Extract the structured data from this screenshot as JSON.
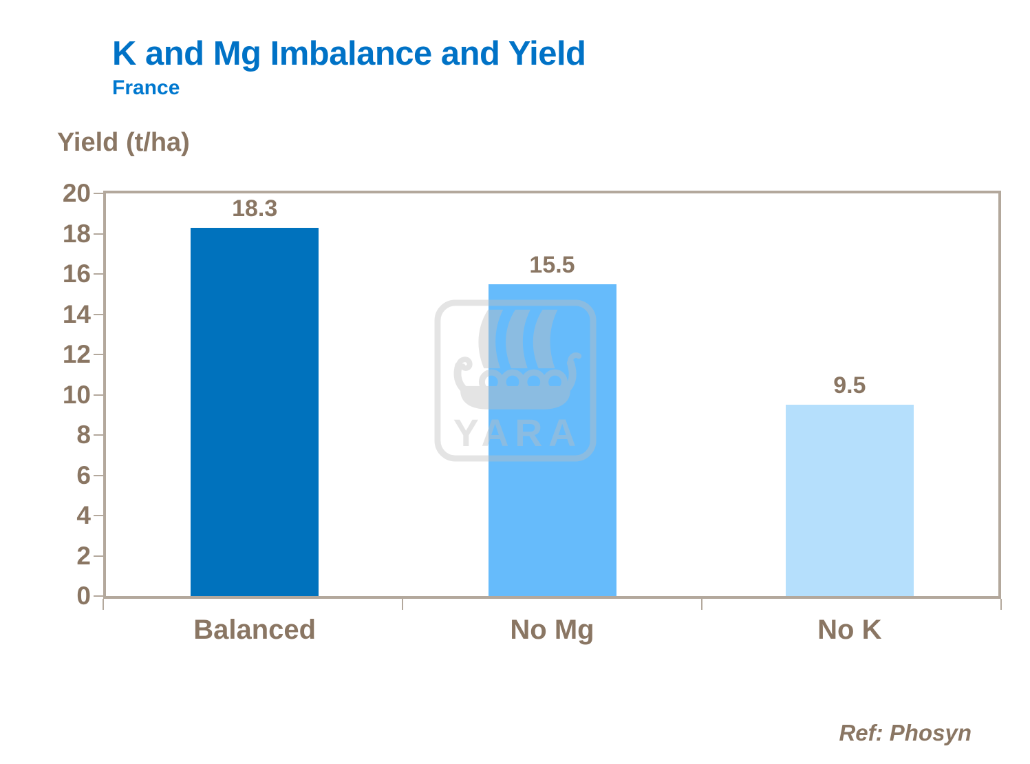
{
  "page": {
    "title": "K and Mg Imbalance and Yield",
    "subtitle": "France",
    "reference": "Ref: Phosyn"
  },
  "watermark": {
    "label": "YARA",
    "icon": "viking-ship-logo"
  },
  "colors": {
    "title_blue": "#0072C6",
    "subtitle_blue": "#0078CF",
    "text_brown": "#8A7663",
    "frame_taupe": "#B3A89C",
    "bar_dark_blue": "#0072BD",
    "bar_medium_blue": "#66BBFB",
    "bar_light_blue": "#B5DFFC",
    "watermark_gray": "#BFBFBF",
    "background": "#FFFFFF"
  },
  "chart_data": {
    "type": "bar",
    "title": "K and Mg Imbalance and Yield",
    "subtitle": "France",
    "ylabel": "Yield (t/ha)",
    "xlabel": "",
    "categories": [
      "Balanced",
      "No Mg",
      "No K"
    ],
    "values": [
      18.3,
      15.5,
      9.5
    ],
    "value_labels": [
      "18.3",
      "15.5",
      "9.5"
    ],
    "bar_colors": [
      "#0072BD",
      "#66BBFB",
      "#B5DFFC"
    ],
    "ylim": [
      0,
      20
    ],
    "yticks": [
      0,
      2,
      4,
      6,
      8,
      10,
      12,
      14,
      16,
      18,
      20
    ],
    "grid": false,
    "legend": false,
    "annotation": "Ref: Phosyn"
  }
}
